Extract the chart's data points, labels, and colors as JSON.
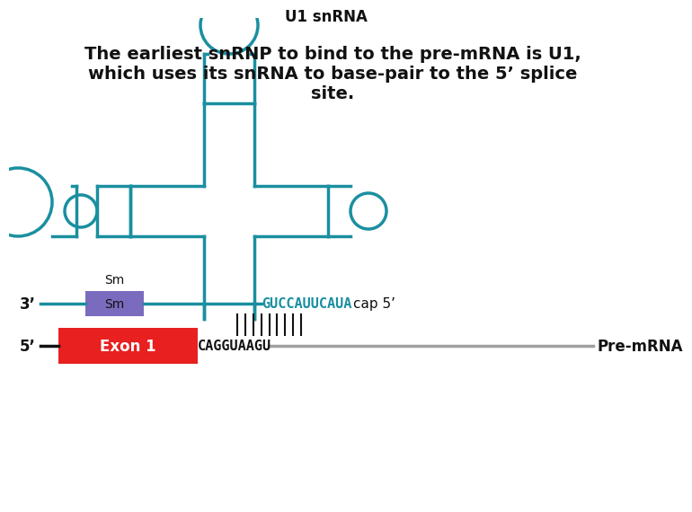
{
  "title": "The earliest snRNP to bind to the pre-mRNA is U1,\nwhich uses its snRNA to base-pair to the 5’ splice\nsite.",
  "title_fontsize": 14,
  "teal_color": "#1a8fa0",
  "purple_color": "#7b6bbf",
  "red_color": "#e82020",
  "gray_color": "#a0a0a0",
  "black_color": "#111111",
  "background_color": "#ffffff",
  "snrna_label": "U1 snRNA",
  "sm_label": "Sm",
  "exon_label": "Exon 1",
  "premrna_label": "Pre-mRNA",
  "three_prime": "3’",
  "five_prime": "5’",
  "cap_label": "cap 5’",
  "snrna_seq": "GUCCAUUCAUA",
  "mrna_seq": "CAGGUAAGU",
  "lw": 2.5,
  "loop_lw": 2.5
}
